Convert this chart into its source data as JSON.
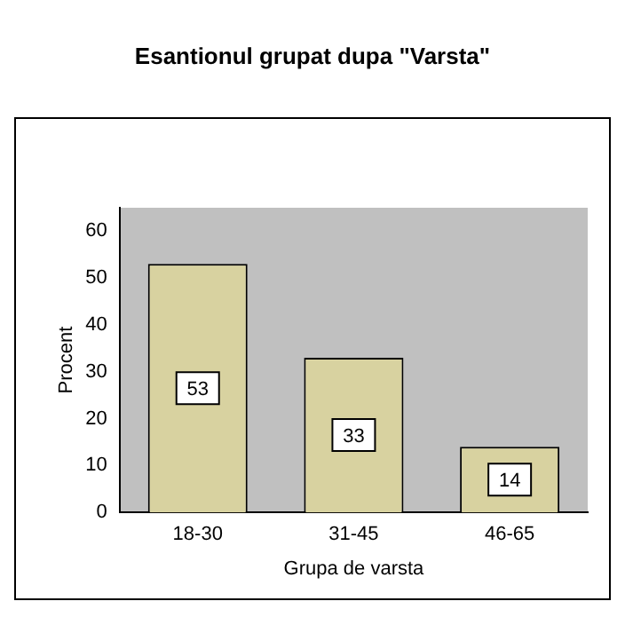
{
  "chart_data": {
    "type": "bar",
    "title": "Esantionul grupat dupa \"Varsta\"",
    "xlabel": "Grupa de varsta",
    "ylabel": "Procent",
    "categories": [
      "18-30",
      "31-45",
      "46-65"
    ],
    "values": [
      53,
      33,
      14
    ],
    "color": "#d8d2a0",
    "ylim": [
      0,
      65
    ],
    "yticks": [
      0,
      10,
      20,
      30,
      40,
      50,
      60
    ],
    "data_labels": true
  }
}
